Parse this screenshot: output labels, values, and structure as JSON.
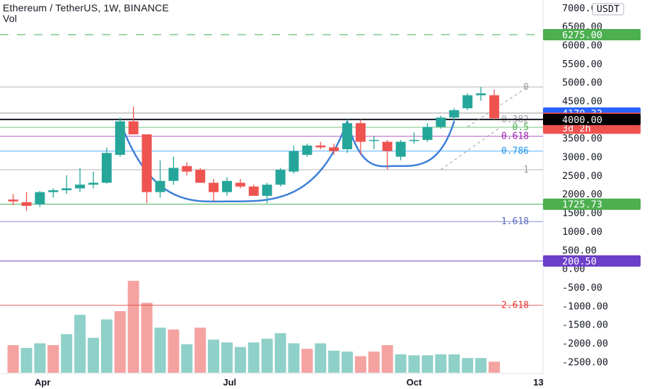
{
  "header": {
    "title": "Ethereum / TetherUS, 1W, BINANCE",
    "volume_label": "Vol"
  },
  "currency_label": "USDT",
  "colors": {
    "up": "#26a69a",
    "down": "#ef5350",
    "vol_up": "#8fd0c8",
    "vol_down": "#f4a3a1",
    "cup": "#3d7fd9",
    "target_line": "#3fae52",
    "support_line": "#131722",
    "badge_blue": "#2962ff",
    "badge_red": "#ef5350",
    "badge_green": "#4caf50",
    "badge_black": "#000000",
    "badge_purple": "#6d3fc9"
  },
  "chart_data": {
    "type": "candlestick",
    "title": "Ethereum / TetherUS, 1W, BINANCE",
    "y_axis": {
      "range": [
        -2800,
        7000
      ],
      "ticks": [
        7000,
        6500,
        6000,
        5500,
        5000,
        4500,
        4000,
        3500,
        3000,
        2500,
        2000,
        1500,
        1000,
        500,
        0,
        -500,
        -1000,
        -1500,
        -2000,
        -2500
      ],
      "tick_labels": [
        "7000.00",
        "6500.00",
        "6000.00",
        "5500.00",
        "5000.00",
        "4500.00",
        "4000.00",
        "3500.00",
        "3000.00",
        "2500.00",
        "2000.00",
        "1500.00",
        "1000.00",
        "500.00",
        "0.00",
        "-500.00",
        "-1000.00",
        "-1500.00",
        "-2000.00",
        "-2500.00"
      ]
    },
    "x_axis": {
      "tick_labels": [
        {
          "label": "Apr",
          "week": 1.2
        },
        {
          "label": "Jul",
          "week": 15.2
        },
        {
          "label": "Oct",
          "week": 29.0
        },
        {
          "label": "13",
          "week": 38.3
        }
      ]
    },
    "candles": [
      {
        "w": -1,
        "o": 1850,
        "h": 2000,
        "l": 1700,
        "c": 1800
      },
      {
        "w": 0,
        "o": 1780,
        "h": 2050,
        "l": 1550,
        "c": 1680
      },
      {
        "w": 1,
        "o": 1720,
        "h": 2080,
        "l": 1650,
        "c": 2050
      },
      {
        "w": 2,
        "o": 2050,
        "h": 2150,
        "l": 1900,
        "c": 2100
      },
      {
        "w": 3,
        "o": 2100,
        "h": 2500,
        "l": 2000,
        "c": 2150
      },
      {
        "w": 4,
        "o": 2150,
        "h": 2700,
        "l": 2050,
        "c": 2250
      },
      {
        "w": 5,
        "o": 2250,
        "h": 2600,
        "l": 2150,
        "c": 2300
      },
      {
        "w": 6,
        "o": 2300,
        "h": 3250,
        "l": 2280,
        "c": 3100
      },
      {
        "w": 7,
        "o": 3050,
        "h": 4050,
        "l": 3000,
        "c": 3950
      },
      {
        "w": 8,
        "o": 3950,
        "h": 4350,
        "l": 3600,
        "c": 3600
      },
      {
        "w": 9,
        "o": 3600,
        "h": 3600,
        "l": 1750,
        "c": 2050
      },
      {
        "w": 10,
        "o": 2050,
        "h": 2900,
        "l": 1900,
        "c": 2350
      },
      {
        "w": 11,
        "o": 2350,
        "h": 3000,
        "l": 2250,
        "c": 2700
      },
      {
        "w": 12,
        "o": 2750,
        "h": 2850,
        "l": 2500,
        "c": 2600
      },
      {
        "w": 13,
        "o": 2650,
        "h": 2700,
        "l": 2300,
        "c": 2300
      },
      {
        "w": 14,
        "o": 2300,
        "h": 2400,
        "l": 1800,
        "c": 2050
      },
      {
        "w": 15,
        "o": 2050,
        "h": 2450,
        "l": 1950,
        "c": 2350
      },
      {
        "w": 16,
        "o": 2300,
        "h": 2400,
        "l": 2150,
        "c": 2200
      },
      {
        "w": 17,
        "o": 2200,
        "h": 2250,
        "l": 1950,
        "c": 1950
      },
      {
        "w": 18,
        "o": 1950,
        "h": 2300,
        "l": 1750,
        "c": 2250
      },
      {
        "w": 19,
        "o": 2250,
        "h": 2700,
        "l": 2200,
        "c": 2650
      },
      {
        "w": 20,
        "o": 2600,
        "h": 3300,
        "l": 2550,
        "c": 3150
      },
      {
        "w": 21,
        "o": 3050,
        "h": 3350,
        "l": 3000,
        "c": 3300
      },
      {
        "w": 22,
        "o": 3300,
        "h": 3400,
        "l": 3200,
        "c": 3250
      },
      {
        "w": 23,
        "o": 3250,
        "h": 3350,
        "l": 3050,
        "c": 3150
      },
      {
        "w": 24,
        "o": 3200,
        "h": 4000,
        "l": 3100,
        "c": 3900
      },
      {
        "w": 25,
        "o": 3900,
        "h": 4000,
        "l": 3050,
        "c": 3400
      },
      {
        "w": 26,
        "o": 3450,
        "h": 3550,
        "l": 3200,
        "c": 3450
      },
      {
        "w": 27,
        "o": 3400,
        "h": 3450,
        "l": 2650,
        "c": 3150
      },
      {
        "w": 28,
        "o": 3000,
        "h": 3450,
        "l": 2900,
        "c": 3400
      },
      {
        "w": 29,
        "o": 3450,
        "h": 3650,
        "l": 3350,
        "c": 3450
      },
      {
        "w": 30,
        "o": 3450,
        "h": 3900,
        "l": 3400,
        "c": 3800
      },
      {
        "w": 31,
        "o": 3800,
        "h": 4100,
        "l": 3750,
        "c": 4050
      },
      {
        "w": 32,
        "o": 4050,
        "h": 4300,
        "l": 3950,
        "c": 4250
      },
      {
        "w": 33,
        "o": 4300,
        "h": 4700,
        "l": 4250,
        "c": 4650
      },
      {
        "w": 34,
        "o": 4650,
        "h": 4870,
        "l": 4500,
        "c": 4700
      },
      {
        "w": 35,
        "o": 4650,
        "h": 4800,
        "l": 4000,
        "c": 4032
      }
    ],
    "volume_bars": [
      {
        "w": -1,
        "v": 0.3,
        "up": false
      },
      {
        "w": 0,
        "v": 0.27,
        "up": true
      },
      {
        "w": 1,
        "v": 0.32,
        "up": true
      },
      {
        "w": 2,
        "v": 0.3,
        "up": false
      },
      {
        "w": 3,
        "v": 0.42,
        "up": true
      },
      {
        "w": 4,
        "v": 0.63,
        "up": true
      },
      {
        "w": 5,
        "v": 0.38,
        "up": true
      },
      {
        "w": 6,
        "v": 0.58,
        "up": true
      },
      {
        "w": 7,
        "v": 0.67,
        "up": false
      },
      {
        "w": 8,
        "v": 1.0,
        "up": false
      },
      {
        "w": 9,
        "v": 0.76,
        "up": false
      },
      {
        "w": 10,
        "v": 0.49,
        "up": true
      },
      {
        "w": 11,
        "v": 0.47,
        "up": false
      },
      {
        "w": 12,
        "v": 0.31,
        "up": true
      },
      {
        "w": 13,
        "v": 0.49,
        "up": false
      },
      {
        "w": 14,
        "v": 0.36,
        "up": true
      },
      {
        "w": 15,
        "v": 0.33,
        "up": true
      },
      {
        "w": 16,
        "v": 0.28,
        "up": true
      },
      {
        "w": 17,
        "v": 0.33,
        "up": true
      },
      {
        "w": 18,
        "v": 0.37,
        "up": true
      },
      {
        "w": 19,
        "v": 0.43,
        "up": true
      },
      {
        "w": 20,
        "v": 0.32,
        "up": true
      },
      {
        "w": 21,
        "v": 0.26,
        "up": false
      },
      {
        "w": 22,
        "v": 0.32,
        "up": true
      },
      {
        "w": 23,
        "v": 0.24,
        "up": true
      },
      {
        "w": 24,
        "v": 0.23,
        "up": true
      },
      {
        "w": 25,
        "v": 0.18,
        "up": false
      },
      {
        "w": 26,
        "v": 0.23,
        "up": false
      },
      {
        "w": 27,
        "v": 0.3,
        "up": false
      },
      {
        "w": 28,
        "v": 0.2,
        "up": true
      },
      {
        "w": 29,
        "v": 0.19,
        "up": true
      },
      {
        "w": 30,
        "v": 0.19,
        "up": true
      },
      {
        "w": 31,
        "v": 0.2,
        "up": true
      },
      {
        "w": 32,
        "v": 0.2,
        "up": true
      },
      {
        "w": 33,
        "v": 0.16,
        "up": true
      },
      {
        "w": 34,
        "v": 0.16,
        "up": true
      },
      {
        "w": 35,
        "v": 0.12,
        "up": false
      }
    ],
    "fib_levels": [
      {
        "label": "0",
        "value": 4870,
        "color": "#9e9e9e"
      },
      {
        "label": "0.382",
        "value": 4000,
        "color": "#9e9e9e"
      },
      {
        "label": "0.5",
        "value": 3790,
        "color": "#4caf50"
      },
      {
        "label": "0.618",
        "value": 3550,
        "color": "#9c27b0"
      },
      {
        "label": "0.786",
        "value": 3150,
        "color": "#2196f3"
      },
      {
        "label": "1",
        "value": 2650,
        "color": "#9e9e9e"
      },
      {
        "label": "1.618",
        "value": 1260,
        "color": "#5c6bc0"
      },
      {
        "label": "2.618",
        "value": -985,
        "color": "#e53935"
      }
    ],
    "horizontal_lines": [
      {
        "name": "target",
        "value": 6275,
        "style": "dashed",
        "color": "#3fae52"
      },
      {
        "name": "support",
        "value": 4000,
        "style": "solid",
        "color": "#131722"
      },
      {
        "name": "bottom-support",
        "value": 1725.73,
        "style": "solid",
        "color": "#3fae52"
      },
      {
        "name": "low",
        "value": 200.5,
        "style": "solid",
        "color": "#6d3fc9"
      },
      {
        "name": "resistance",
        "value": 4170.33,
        "style": "solid",
        "color": "#9e9e9e"
      }
    ],
    "cup_patterns": [
      {
        "start_week": 7,
        "bottom_week": 15,
        "end_week": 24,
        "top": 3950,
        "bottom": 1800
      },
      {
        "start_week": 24,
        "bottom_week": 27.5,
        "end_week": 32,
        "top": 3950,
        "bottom": 2750
      }
    ],
    "price_badges": [
      {
        "value": 6275.0,
        "label": "6275.00",
        "color": "#4caf50"
      },
      {
        "value": 4170.33,
        "label": "4170.33",
        "color": "#2962ff"
      },
      {
        "value": 4031.9,
        "label": "4031.90",
        "sublabel": "3d 2h",
        "color": "#ef5350"
      },
      {
        "value": 4000.0,
        "label": "4000.00",
        "color": "#000000"
      },
      {
        "value": 1725.73,
        "label": "1725.73",
        "color": "#4caf50"
      },
      {
        "value": 200.5,
        "label": "200.50",
        "color": "#6d3fc9"
      }
    ],
    "grid": false,
    "legend": "none"
  }
}
